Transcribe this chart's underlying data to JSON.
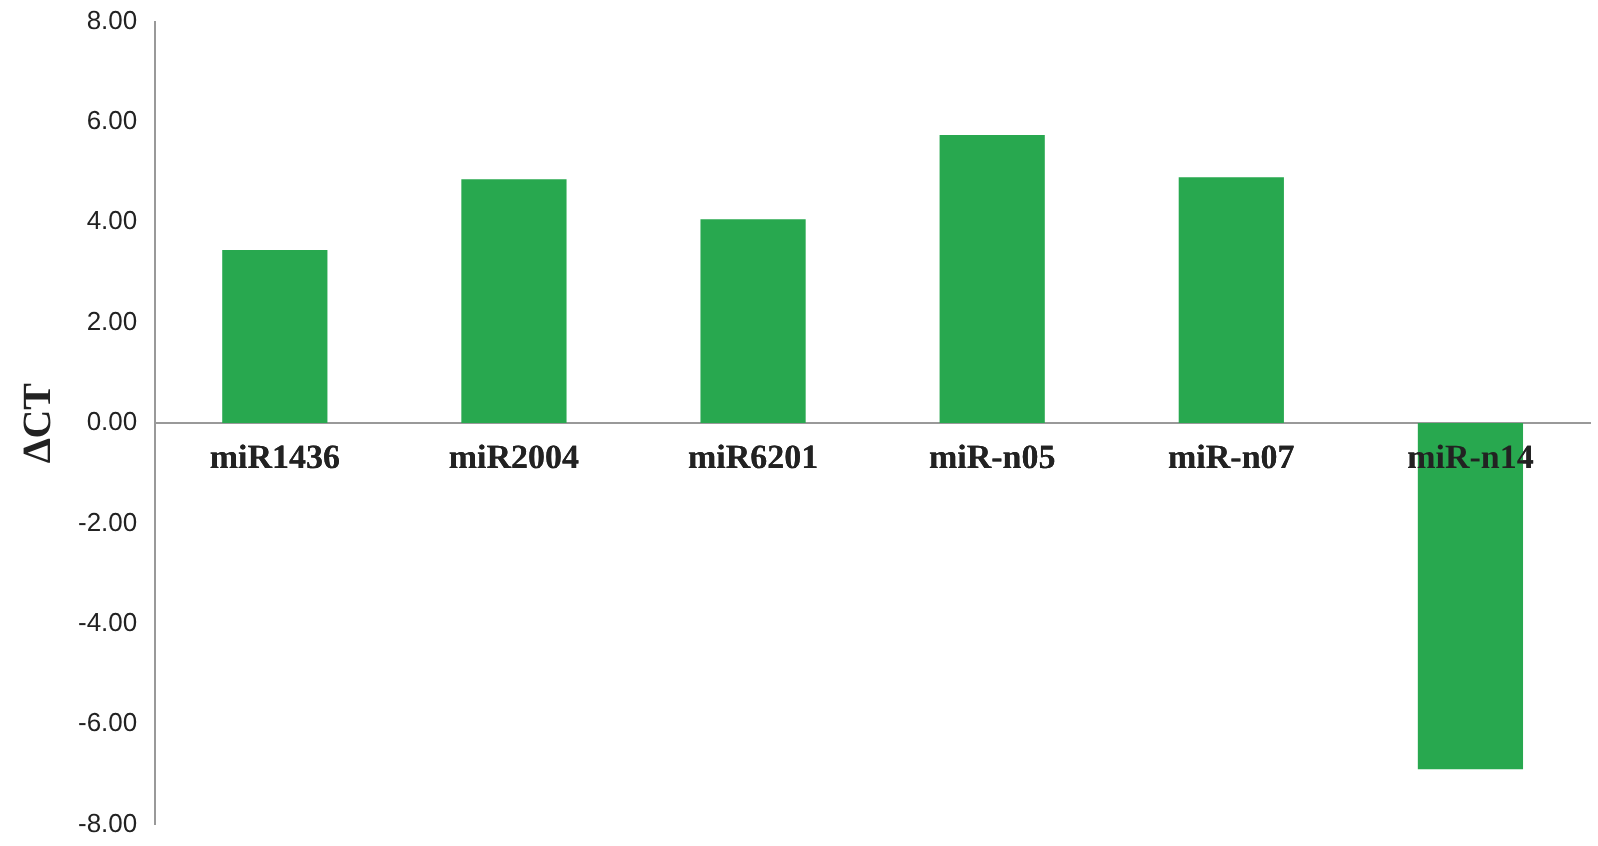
{
  "chart_data": {
    "type": "bar",
    "ylabel": "∆CT",
    "categories": [
      "miR1436",
      "miR2004",
      "miR6201",
      "miR-n05",
      "miR-n07",
      "miR-n14"
    ],
    "values": [
      3.45,
      4.86,
      4.06,
      5.74,
      4.9,
      -6.9
    ],
    "color": "#28a84f",
    "ylim": [
      -8,
      8
    ],
    "yticks": [
      {
        "value": -8,
        "label": "-8.00"
      },
      {
        "value": -6,
        "label": "-6.00"
      },
      {
        "value": -4,
        "label": "-4.00"
      },
      {
        "value": -2,
        "label": "-2.00"
      },
      {
        "value": 0,
        "label": "0.00"
      },
      {
        "value": 2,
        "label": "2.00"
      },
      {
        "value": 4,
        "label": "4.00"
      },
      {
        "value": 6,
        "label": "6.00"
      },
      {
        "value": 8,
        "label": "8.00"
      }
    ],
    "grid": false,
    "legend": false
  }
}
